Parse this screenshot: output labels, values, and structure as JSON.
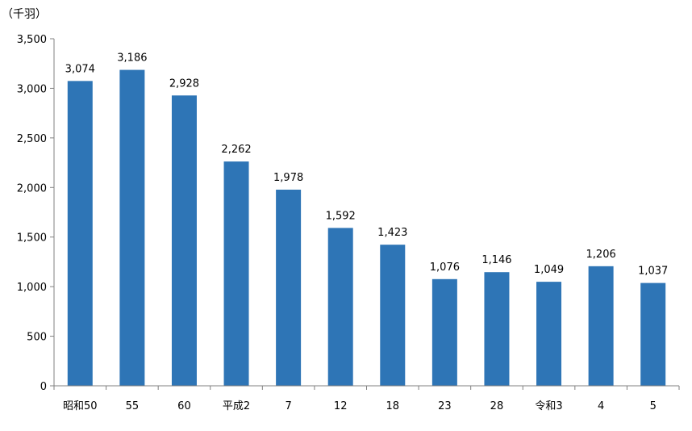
{
  "chart_data": {
    "type": "bar",
    "unit_label": "（千羽）",
    "categories": [
      "昭和50",
      "55",
      "60",
      "平成2",
      "7",
      "12",
      "18",
      "23",
      "28",
      "令和3",
      "4",
      "5"
    ],
    "values": [
      3074,
      3186,
      2928,
      2262,
      1978,
      1592,
      1423,
      1076,
      1146,
      1049,
      1206,
      1037
    ],
    "value_labels": [
      "3,074",
      "3,186",
      "2,928",
      "2,262",
      "1,978",
      "1,592",
      "1,423",
      "1,076",
      "1,146",
      "1,049",
      "1,206",
      "1,037"
    ],
    "ylim": [
      0,
      3500
    ],
    "yticks": [
      0,
      500,
      1000,
      1500,
      2000,
      2500,
      3000,
      3500
    ],
    "ytick_labels": [
      "0",
      "500",
      "1,000",
      "1,500",
      "2,000",
      "2,500",
      "3,000",
      "3,500"
    ],
    "grid": false,
    "bar_color": "#2E75B6"
  }
}
